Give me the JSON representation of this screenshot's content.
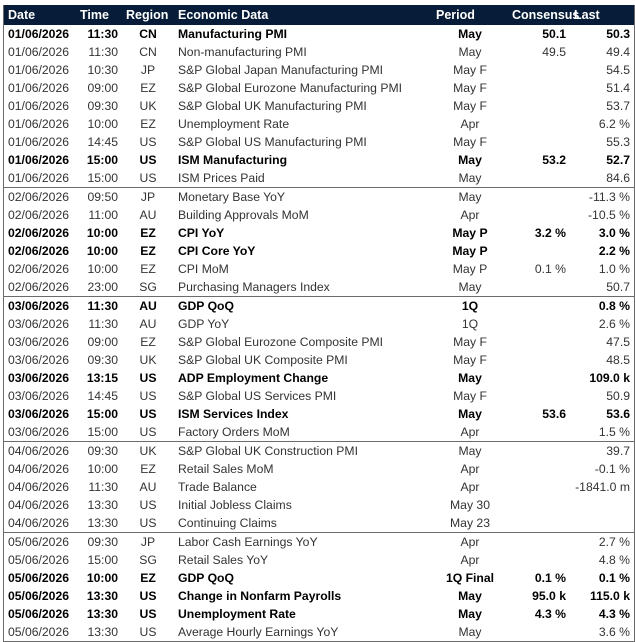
{
  "header": {
    "date": "Date",
    "time": "Time",
    "region": "Region",
    "economic_data": "Economic Data",
    "period": "Period",
    "consensus": "Consensus",
    "last": "Last"
  },
  "rows": [
    {
      "date": "01/06/2026",
      "time": "11:30",
      "region": "CN",
      "data": "Manufacturing PMI",
      "period": "May",
      "consensus": "50.1",
      "last": "50.3",
      "bold": true,
      "sep": false
    },
    {
      "date": "01/06/2026",
      "time": "11:30",
      "region": "CN",
      "data": "Non-manufacturing PMI",
      "period": "May",
      "consensus": "49.5",
      "last": "49.4",
      "bold": false,
      "sep": false
    },
    {
      "date": "01/06/2026",
      "time": "10:30",
      "region": "JP",
      "data": "S&P Global Japan Manufacturing PMI",
      "period": "May F",
      "consensus": "",
      "last": "54.5",
      "bold": false,
      "sep": false
    },
    {
      "date": "01/06/2026",
      "time": "09:00",
      "region": "EZ",
      "data": "S&P Global Eurozone Manufacturing PMI",
      "period": "May F",
      "consensus": "",
      "last": "51.4",
      "bold": false,
      "sep": false
    },
    {
      "date": "01/06/2026",
      "time": "09:30",
      "region": "UK",
      "data": "S&P Global UK Manufacturing PMI",
      "period": "May F",
      "consensus": "",
      "last": "53.7",
      "bold": false,
      "sep": false
    },
    {
      "date": "01/06/2026",
      "time": "10:00",
      "region": "EZ",
      "data": "Unemployment Rate",
      "period": "Apr",
      "consensus": "",
      "last": "6.2 %",
      "bold": false,
      "sep": false
    },
    {
      "date": "01/06/2026",
      "time": "14:45",
      "region": "US",
      "data": "S&P Global US Manufacturing PMI",
      "period": "May F",
      "consensus": "",
      "last": "55.3",
      "bold": false,
      "sep": false
    },
    {
      "date": "01/06/2026",
      "time": "15:00",
      "region": "US",
      "data": "ISM Manufacturing",
      "period": "May",
      "consensus": "53.2",
      "last": "52.7",
      "bold": true,
      "sep": false
    },
    {
      "date": "01/06/2026",
      "time": "15:00",
      "region": "US",
      "data": "ISM Prices Paid",
      "period": "May",
      "consensus": "",
      "last": "84.6",
      "bold": false,
      "sep": false
    },
    {
      "date": "02/06/2026",
      "time": "09:50",
      "region": "JP",
      "data": "Monetary Base YoY",
      "period": "May",
      "consensus": "",
      "last": "-11.3 %",
      "bold": false,
      "sep": true
    },
    {
      "date": "02/06/2026",
      "time": "11:00",
      "region": "AU",
      "data": "Building Approvals MoM",
      "period": "Apr",
      "consensus": "",
      "last": "-10.5 %",
      "bold": false,
      "sep": false
    },
    {
      "date": "02/06/2026",
      "time": "10:00",
      "region": "EZ",
      "data": "CPI YoY",
      "period": "May P",
      "consensus": "3.2 %",
      "last": "3.0 %",
      "bold": true,
      "sep": false
    },
    {
      "date": "02/06/2026",
      "time": "10:00",
      "region": "EZ",
      "data": "CPI Core YoY",
      "period": "May P",
      "consensus": "",
      "last": "2.2 %",
      "bold": true,
      "sep": false
    },
    {
      "date": "02/06/2026",
      "time": "10:00",
      "region": "EZ",
      "data": "CPI MoM",
      "period": "May P",
      "consensus": "0.1 %",
      "last": "1.0 %",
      "bold": false,
      "sep": false
    },
    {
      "date": "02/06/2026",
      "time": "23:00",
      "region": "SG",
      "data": "Purchasing Managers Index",
      "period": "May",
      "consensus": "",
      "last": "50.7",
      "bold": false,
      "sep": false
    },
    {
      "date": "03/06/2026",
      "time": "11:30",
      "region": "AU",
      "data": "GDP QoQ",
      "period": "1Q",
      "consensus": "",
      "last": "0.8 %",
      "bold": true,
      "sep": true
    },
    {
      "date": "03/06/2026",
      "time": "11:30",
      "region": "AU",
      "data": "GDP YoY",
      "period": "1Q",
      "consensus": "",
      "last": "2.6 %",
      "bold": false,
      "sep": false
    },
    {
      "date": "03/06/2026",
      "time": "09:00",
      "region": "EZ",
      "data": "S&P Global Eurozone Composite PMI",
      "period": "May F",
      "consensus": "",
      "last": "47.5",
      "bold": false,
      "sep": false
    },
    {
      "date": "03/06/2026",
      "time": "09:30",
      "region": "UK",
      "data": "S&P Global UK Composite PMI",
      "period": "May F",
      "consensus": "",
      "last": "48.5",
      "bold": false,
      "sep": false
    },
    {
      "date": "03/06/2026",
      "time": "13:15",
      "region": "US",
      "data": "ADP Employment Change",
      "period": "May",
      "consensus": "",
      "last": "109.0 k",
      "bold": true,
      "sep": false
    },
    {
      "date": "03/06/2026",
      "time": "14:45",
      "region": "US",
      "data": "S&P Global US Services PMI",
      "period": "May F",
      "consensus": "",
      "last": "50.9",
      "bold": false,
      "sep": false
    },
    {
      "date": "03/06/2026",
      "time": "15:00",
      "region": "US",
      "data": "ISM Services Index",
      "period": "May",
      "consensus": "53.6",
      "last": "53.6",
      "bold": true,
      "sep": false
    },
    {
      "date": "03/06/2026",
      "time": "15:00",
      "region": "US",
      "data": "Factory Orders MoM",
      "period": "Apr",
      "consensus": "",
      "last": "1.5 %",
      "bold": false,
      "sep": false
    },
    {
      "date": "04/06/2026",
      "time": "09:30",
      "region": "UK",
      "data": "S&P Global UK Construction PMI",
      "period": "May",
      "consensus": "",
      "last": "39.7",
      "bold": false,
      "sep": true
    },
    {
      "date": "04/06/2026",
      "time": "10:00",
      "region": "EZ",
      "data": "Retail Sales MoM",
      "period": "Apr",
      "consensus": "",
      "last": "-0.1 %",
      "bold": false,
      "sep": false
    },
    {
      "date": "04/06/2026",
      "time": "11:30",
      "region": "AU",
      "data": "Trade Balance",
      "period": "Apr",
      "consensus": "",
      "last": "-1841.0 m",
      "bold": false,
      "sep": false
    },
    {
      "date": "04/06/2026",
      "time": "13:30",
      "region": "US",
      "data": "Initial Jobless Claims",
      "period": "May 30",
      "consensus": "",
      "last": "",
      "bold": false,
      "sep": false
    },
    {
      "date": "04/06/2026",
      "time": "13:30",
      "region": "US",
      "data": "Continuing Claims",
      "period": "May 23",
      "consensus": "",
      "last": "",
      "bold": false,
      "sep": false
    },
    {
      "date": "05/06/2026",
      "time": "09:30",
      "region": "JP",
      "data": "Labor Cash Earnings YoY",
      "period": "Apr",
      "consensus": "",
      "last": "2.7 %",
      "bold": false,
      "sep": true
    },
    {
      "date": "05/06/2026",
      "time": "15:00",
      "region": "SG",
      "data": "Retail Sales YoY",
      "period": "Apr",
      "consensus": "",
      "last": "4.8 %",
      "bold": false,
      "sep": false
    },
    {
      "date": "05/06/2026",
      "time": "10:00",
      "region": "EZ",
      "data": "GDP QoQ",
      "period": "1Q Final",
      "consensus": "0.1 %",
      "last": "0.1 %",
      "bold": true,
      "sep": false
    },
    {
      "date": "05/06/2026",
      "time": "13:30",
      "region": "US",
      "data": "Change in Nonfarm Payrolls",
      "period": "May",
      "consensus": "95.0 k",
      "last": "115.0 k",
      "bold": true,
      "sep": false
    },
    {
      "date": "05/06/2026",
      "time": "13:30",
      "region": "US",
      "data": "Unemployment Rate",
      "period": "May",
      "consensus": "4.3 %",
      "last": "4.3 %",
      "bold": true,
      "sep": false
    },
    {
      "date": "05/06/2026",
      "time": "13:30",
      "region": "US",
      "data": "Average Hourly Earnings YoY",
      "period": "May",
      "consensus": "",
      "last": "3.6 %",
      "bold": false,
      "sep": false
    }
  ]
}
